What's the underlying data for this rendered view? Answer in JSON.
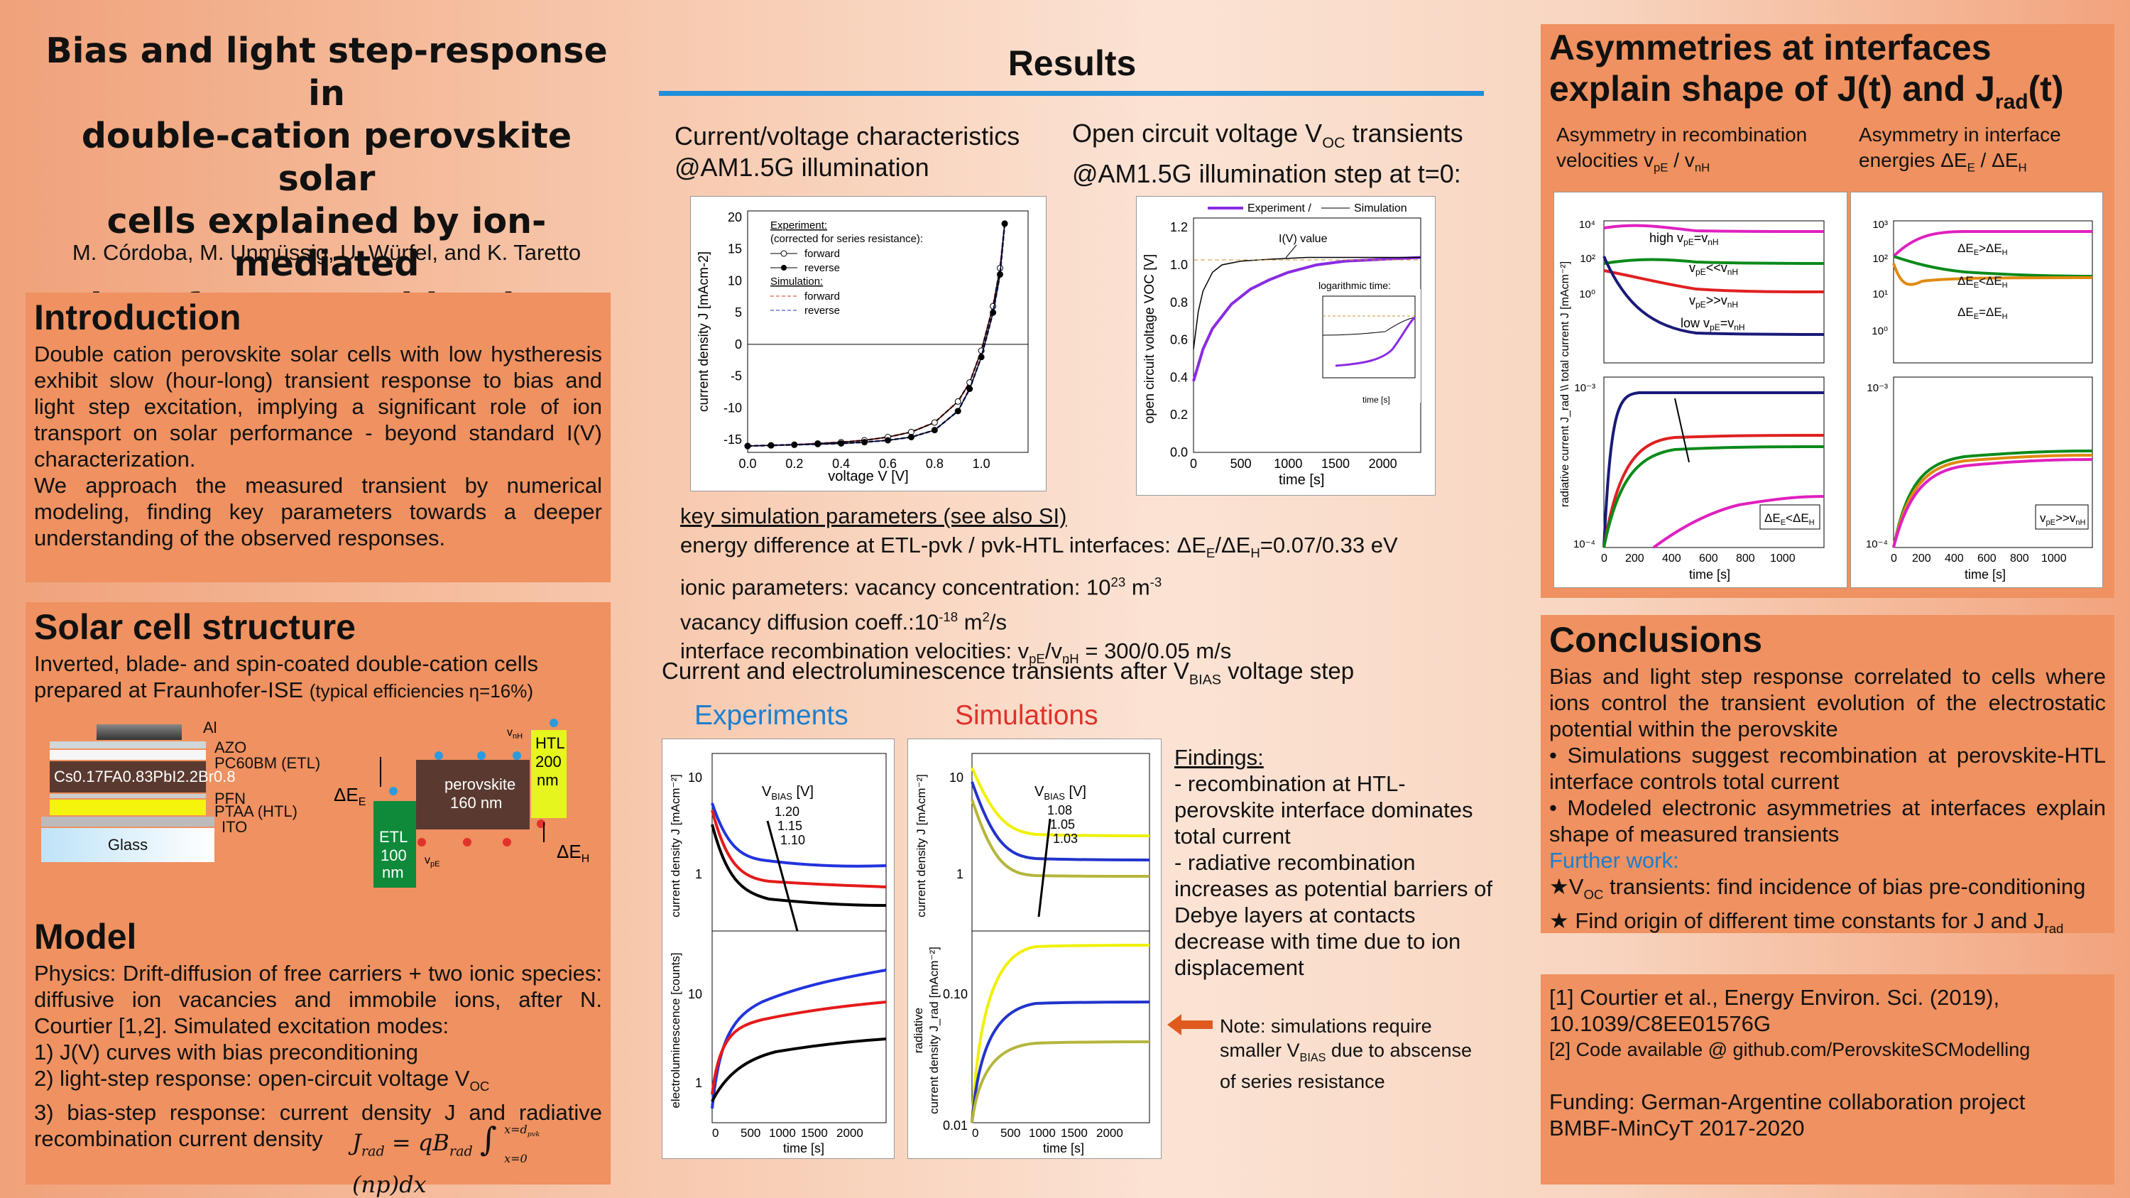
{
  "title": {
    "lines": [
      "Bias and light step-response in",
      "double-cation perovskite solar",
      "cells explained by ion-mediated",
      "interface recombination"
    ],
    "authors": "M. Córdoba, M. Unmüssig, U. Würfel, and K. Taretto"
  },
  "introduction": {
    "heading": "Introduction",
    "p1": "Double cation perovskite solar cells with low hystheresis exhibit slow (hour-long) transient response to bias and light step excitation, implying a significant role of ion transport on solar performance - beyond standard I(V) characterization.",
    "p2": "We approach the measured transient by numerical modeling, finding key parameters towards a deeper understanding of the observed responses."
  },
  "structure": {
    "heading": "Solar cell structure",
    "p1": "Inverted, blade- and spin-coated double-cation cells prepared at Fraunhofer-ISE",
    "eff": "(typical efficiencies η=16%)",
    "layers": {
      "al": "Al",
      "azo": "AZO",
      "pcbm": "PC60BM (ETL)",
      "pero": "Cs0.17FA0.83PbI2.2Br0.8",
      "pfn": "PFN",
      "ptaa": "PTAA (HTL)",
      "ito": "ITO",
      "glass": "Glass"
    },
    "band": {
      "de": "ΔEE",
      "dh": "ΔEH",
      "etl": "ETL\n100\nnm",
      "etl_l1": "ETL",
      "etl_l2": "100",
      "etl_l3": "nm",
      "pero1": "perovskite",
      "pero2": "160 nm",
      "htl1": "HTL",
      "htl2": "200",
      "htl3": "nm",
      "vpe": "vpE",
      "vnh": "vnH"
    }
  },
  "model": {
    "heading": "Model",
    "p1": "Physics: Drift-diffusion of free carriers + two ionic species: diffusive ion vacancies and immobile ions, after N. Courtier [1,2]. Simulated excitation modes:",
    "l1": "1) J(V) curves with bias preconditioning",
    "l2": "2) light-step response: open-circuit voltage V",
    "l2sub": "OC",
    "l3": "3) bias-step response: current density J and radiative recombination current density",
    "eq_lhs": "J",
    "eq_lhs_sub": "rad",
    "eq_rhs": "= qB",
    "eq_rhs_sub": "rad",
    "eq_int_top": "x=d",
    "eq_int_top_sub": "pvk",
    "eq_int_bot": "x=0",
    "eq_body": "(np)dx"
  },
  "results": {
    "heading": "Results",
    "jv_caption_1": "Current/voltage characteristics",
    "jv_caption_2": "@AM1.5G illumination",
    "voc_caption_1": "Open circuit voltage V",
    "voc_caption_1_sub": "OC",
    "voc_caption_1b": " transients",
    "voc_caption_2": "@AM1.5G illumination step at t=0:",
    "key_heading": "key simulation parameters (see also SI)",
    "key1": "energy difference at ETL-pvk / pvk-HTL interfaces: ΔE",
    "key1_s1": "E",
    "key1_mid": "/ΔE",
    "key1_s2": "H",
    "key1_end": "=0.07/0.33 eV",
    "key2": "ionic parameters: vacancy concentration: 10",
    "key2_sup": "23",
    "key2_end": " m",
    "key2_sup2": "-3",
    "key3": "vacancy diffusion coeff.:10",
    "key3_sup": "-18",
    "key3_end": " m",
    "key3_sup2": "2",
    "key3_end2": "/s",
    "key4": "interface recombination velocities: v",
    "key4_s1": "pE",
    "key4_mid": "/v",
    "key4_s2": "nH",
    "key4_end": " = 300/0.05 m/s",
    "trans_caption": "Current and electroluminescence transients after V",
    "trans_caption_sub": "BIAS",
    "trans_caption_end": " voltage step",
    "exp_label": "Experiments",
    "sim_label": "Simulations",
    "findings_heading": "Findings:",
    "findings": [
      "- recombination at HTL-",
      "perovskite interface  dominates",
      "total current",
      "- radiative recombination",
      "increases as potential barriers of",
      "Debye layers at contacts",
      "decrease with time due to ion",
      "displacement"
    ],
    "note_1": "Note: simulations require",
    "note_2": "smaller V",
    "note_2_sub": "BIAS",
    "note_2_end": " due to abscense",
    "note_3": "of series resistance"
  },
  "asym": {
    "heading_1": "Asymmetries at interfaces",
    "heading_2": "explain shape of J(t) and J",
    "heading_2_sub": "rad",
    "heading_2_end": "(t)",
    "left_cap_1": "Asymmetry in recombination",
    "left_cap_2": "velocities v",
    "left_cap_2_s1": "pE",
    "left_cap_2_mid": " / v",
    "left_cap_2_s2": "nH",
    "right_cap_1": "Asymmetry in interface",
    "right_cap_2": "energies ΔE",
    "right_cap_2_s1": "E",
    "right_cap_2_mid": " / ΔE",
    "right_cap_2_s2": "H"
  },
  "conclusions": {
    "heading": "Conclusions",
    "p1": "Bias and light step response correlated to cells where ions control the transient evolution of the electrostatic potential within the perovskite",
    "b1": "Simulations suggest recombination at perovskite-HTL interface controls total current",
    "b2": "Modeled electronic asymmetries at interfaces explain shape of measured transients",
    "further": "Further work:",
    "f1": "★V",
    "f1_sub": "OC",
    "f1_end": " transients: find incidence of bias pre-conditioning",
    "f2": "★ Find origin of different time constants for J and J",
    "f2_sub": "rad"
  },
  "refs": {
    "r1a": "[1] Courtier et al., Energy Environ. Sci. (2019),",
    "r1b": "10.1039/C8EE01576G",
    "r2": "[2] Code available @ github.com/PerovskiteSCModelling",
    "f1": "Funding: German-Argentine collaboration project",
    "f2": "BMBF-MinCyT 2017-2020"
  },
  "colors": {
    "box": "#ef9160",
    "blue_rule": "#1f8fd8",
    "exp": "#1b7fd0",
    "sim": "#e0312a",
    "arrow": "#e05a1e"
  },
  "chart_data": [
    {
      "type": "line",
      "title": "",
      "xlabel": "voltage V [V]",
      "ylabel": "current density J [mAcm-2]",
      "xlim": [
        0.0,
        1.2
      ],
      "ylim": [
        -17,
        21
      ],
      "xticks": [
        "0.0",
        "0.2",
        "0.4",
        "0.6",
        "0.8",
        "1.0"
      ],
      "yticks": [
        "-15",
        "-10",
        "-5",
        "0",
        "5",
        "10",
        "15",
        "20"
      ],
      "legend_lines": [
        "Experiment:",
        "(corrected for series resistance):",
        "forward",
        "reverse",
        "Simulation:",
        "forward",
        "reverse"
      ],
      "series": [
        {
          "name": "forward",
          "x": [
            0,
            0.1,
            0.2,
            0.3,
            0.4,
            0.5,
            0.6,
            0.7,
            0.8,
            0.9,
            0.95,
            1.0,
            1.05,
            1.08,
            1.1
          ],
          "y": [
            -16,
            -15.9,
            -15.8,
            -15.6,
            -15.4,
            -15.1,
            -14.6,
            -13.8,
            -12.3,
            -9,
            -6,
            -1,
            6,
            12,
            19
          ]
        },
        {
          "name": "reverse",
          "x": [
            0,
            0.1,
            0.2,
            0.3,
            0.4,
            0.5,
            0.6,
            0.7,
            0.8,
            0.9,
            0.95,
            1.0,
            1.05,
            1.08,
            1.1
          ],
          "y": [
            -16,
            -15.9,
            -15.8,
            -15.7,
            -15.6,
            -15.4,
            -15.1,
            -14.6,
            -13.5,
            -10.5,
            -7,
            -2,
            5,
            11,
            19
          ]
        }
      ]
    },
    {
      "type": "line",
      "xlabel": "time [s]",
      "ylabel": "open circuit voltage VOC [V]",
      "xlim": [
        0,
        2400
      ],
      "ylim": [
        0.0,
        1.25
      ],
      "xticks": [
        "0",
        "500",
        "1000",
        "1500",
        "2000"
      ],
      "yticks": [
        "0.0",
        "0.2",
        "0.4",
        "0.6",
        "0.8",
        "1.0",
        "1.2"
      ],
      "legend": [
        "Experiment /",
        "Simulation"
      ],
      "annotation": "I(V) value",
      "inset_title": "logarithmic time:",
      "series": [
        {
          "name": "Experiment",
          "x": [
            0,
            100,
            200,
            400,
            600,
            800,
            1000,
            1300,
            1600,
            2000,
            2400
          ],
          "y": [
            0.38,
            0.55,
            0.66,
            0.79,
            0.87,
            0.92,
            0.96,
            1.0,
            1.02,
            1.03,
            1.04
          ]
        },
        {
          "name": "Simulation",
          "x": [
            0,
            50,
            100,
            200,
            300,
            500,
            800,
            1200,
            2400
          ],
          "y": [
            0.55,
            0.75,
            0.86,
            0.96,
            1.0,
            1.02,
            1.03,
            1.04,
            1.04
          ]
        }
      ]
    }
  ]
}
